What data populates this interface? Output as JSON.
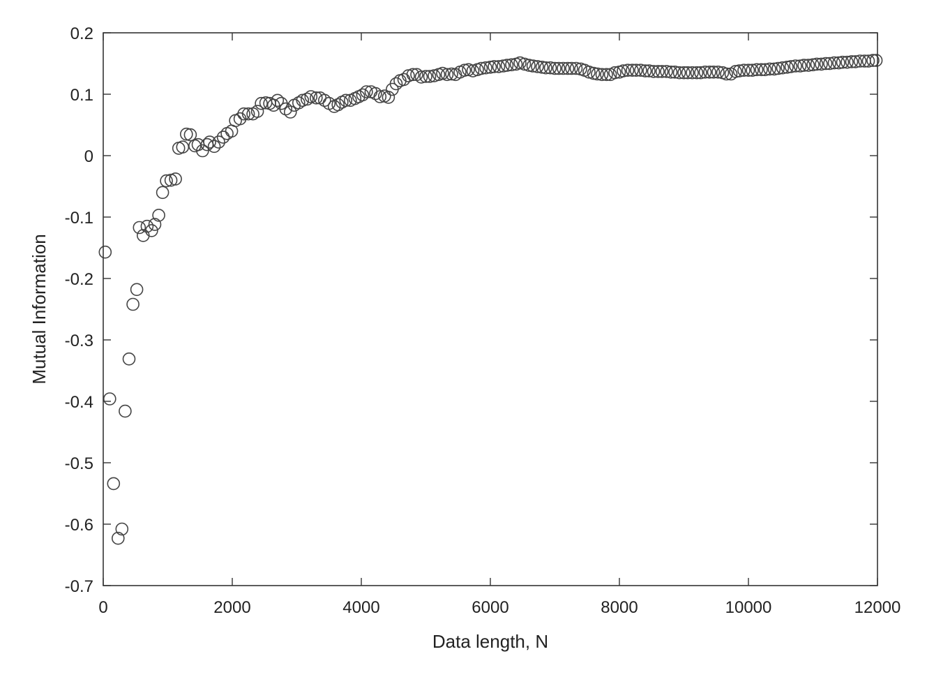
{
  "chart_data": {
    "type": "scatter",
    "title": "",
    "xlabel": "Data length, N",
    "ylabel": "Mutual Information",
    "xlim": [
      0,
      12000
    ],
    "ylim": [
      -0.7,
      0.2
    ],
    "xticks": [
      0,
      2000,
      4000,
      6000,
      8000,
      10000,
      12000
    ],
    "yticks": [
      0.2,
      0.1,
      0,
      -0.1,
      -0.2,
      -0.3,
      -0.4,
      -0.5,
      -0.6,
      -0.7
    ],
    "xtick_labels": [
      "0",
      "2000",
      "4000",
      "6000",
      "8000",
      "10000",
      "12000"
    ],
    "ytick_labels": [
      "0.2",
      "0.1",
      "0",
      "-0.1",
      "-0.2",
      "-0.3",
      "-0.4",
      "-0.5",
      "-0.6",
      "-0.7"
    ],
    "grid": false,
    "marker": "open-circle",
    "marker_color": "#444444",
    "series": [
      {
        "points": [
          [
            30,
            -0.157
          ],
          [
            100,
            -0.396
          ],
          [
            160,
            -0.534
          ],
          [
            230,
            -0.623
          ],
          [
            290,
            -0.608
          ],
          [
            340,
            -0.416
          ],
          [
            400,
            -0.331
          ],
          [
            460,
            -0.242
          ],
          [
            520,
            -0.218
          ],
          [
            560,
            -0.117
          ],
          [
            620,
            -0.13
          ],
          [
            680,
            -0.115
          ],
          [
            750,
            -0.122
          ],
          [
            800,
            -0.112
          ],
          [
            860,
            -0.097
          ],
          [
            920,
            -0.06
          ],
          [
            980,
            -0.041
          ],
          [
            1050,
            -0.04
          ],
          [
            1120,
            -0.038
          ],
          [
            1170,
            0.012
          ],
          [
            1230,
            0.014
          ],
          [
            1290,
            0.035
          ],
          [
            1350,
            0.034
          ],
          [
            1420,
            0.016
          ],
          [
            1470,
            0.018
          ],
          [
            1540,
            0.008
          ],
          [
            1610,
            0.018
          ],
          [
            1650,
            0.022
          ],
          [
            1720,
            0.015
          ],
          [
            1790,
            0.022
          ],
          [
            1860,
            0.03
          ],
          [
            1920,
            0.036
          ],
          [
            1990,
            0.04
          ],
          [
            2050,
            0.057
          ],
          [
            2120,
            0.06
          ],
          [
            2180,
            0.068
          ],
          [
            2250,
            0.068
          ],
          [
            2320,
            0.068
          ],
          [
            2390,
            0.072
          ],
          [
            2450,
            0.085
          ],
          [
            2520,
            0.086
          ],
          [
            2580,
            0.085
          ],
          [
            2640,
            0.082
          ],
          [
            2700,
            0.09
          ],
          [
            2760,
            0.085
          ],
          [
            2830,
            0.076
          ],
          [
            2900,
            0.071
          ],
          [
            2960,
            0.082
          ],
          [
            3030,
            0.086
          ],
          [
            3090,
            0.09
          ],
          [
            3160,
            0.092
          ],
          [
            3220,
            0.096
          ],
          [
            3300,
            0.094
          ],
          [
            3360,
            0.094
          ],
          [
            3430,
            0.09
          ],
          [
            3500,
            0.085
          ],
          [
            3580,
            0.08
          ],
          [
            3640,
            0.083
          ],
          [
            3700,
            0.087
          ],
          [
            3760,
            0.09
          ],
          [
            3830,
            0.09
          ],
          [
            3900,
            0.093
          ],
          [
            3960,
            0.096
          ],
          [
            4020,
            0.099
          ],
          [
            4080,
            0.104
          ],
          [
            4150,
            0.104
          ],
          [
            4220,
            0.101
          ],
          [
            4290,
            0.096
          ],
          [
            4360,
            0.097
          ],
          [
            4420,
            0.095
          ],
          [
            4480,
            0.108
          ],
          [
            4540,
            0.117
          ],
          [
            4600,
            0.122
          ],
          [
            4660,
            0.124
          ],
          [
            4730,
            0.13
          ],
          [
            4800,
            0.132
          ],
          [
            4860,
            0.132
          ],
          [
            4930,
            0.128
          ],
          [
            5000,
            0.129
          ],
          [
            5060,
            0.129
          ],
          [
            5130,
            0.13
          ],
          [
            5200,
            0.132
          ],
          [
            5260,
            0.134
          ],
          [
            5330,
            0.132
          ],
          [
            5400,
            0.133
          ],
          [
            5460,
            0.132
          ],
          [
            5530,
            0.136
          ],
          [
            5600,
            0.139
          ],
          [
            5660,
            0.14
          ],
          [
            5730,
            0.138
          ],
          [
            5800,
            0.14
          ],
          [
            5860,
            0.142
          ],
          [
            5930,
            0.143
          ],
          [
            6000,
            0.144
          ],
          [
            6060,
            0.145
          ],
          [
            6130,
            0.145
          ],
          [
            6200,
            0.146
          ],
          [
            6260,
            0.147
          ],
          [
            6330,
            0.148
          ],
          [
            6400,
            0.149
          ],
          [
            6460,
            0.151
          ],
          [
            6530,
            0.149
          ],
          [
            6600,
            0.147
          ],
          [
            6660,
            0.146
          ],
          [
            6730,
            0.145
          ],
          [
            6800,
            0.144
          ],
          [
            6860,
            0.143
          ],
          [
            6930,
            0.143
          ],
          [
            7000,
            0.142
          ],
          [
            7060,
            0.142
          ],
          [
            7130,
            0.142
          ],
          [
            7200,
            0.142
          ],
          [
            7260,
            0.142
          ],
          [
            7330,
            0.142
          ],
          [
            7400,
            0.141
          ],
          [
            7460,
            0.139
          ],
          [
            7530,
            0.136
          ],
          [
            7600,
            0.134
          ],
          [
            7660,
            0.133
          ],
          [
            7730,
            0.132
          ],
          [
            7800,
            0.132
          ],
          [
            7860,
            0.132
          ],
          [
            7930,
            0.135
          ],
          [
            8000,
            0.136
          ],
          [
            8060,
            0.138
          ],
          [
            8130,
            0.139
          ],
          [
            8200,
            0.139
          ],
          [
            8260,
            0.139
          ],
          [
            8330,
            0.139
          ],
          [
            8400,
            0.138
          ],
          [
            8460,
            0.138
          ],
          [
            8530,
            0.137
          ],
          [
            8600,
            0.137
          ],
          [
            8660,
            0.137
          ],
          [
            8730,
            0.137
          ],
          [
            8800,
            0.136
          ],
          [
            8860,
            0.136
          ],
          [
            8930,
            0.135
          ],
          [
            9000,
            0.135
          ],
          [
            9060,
            0.135
          ],
          [
            9130,
            0.135
          ],
          [
            9200,
            0.135
          ],
          [
            9260,
            0.135
          ],
          [
            9330,
            0.136
          ],
          [
            9400,
            0.136
          ],
          [
            9460,
            0.136
          ],
          [
            9530,
            0.136
          ],
          [
            9600,
            0.135
          ],
          [
            9660,
            0.133
          ],
          [
            9730,
            0.133
          ],
          [
            9800,
            0.137
          ],
          [
            9860,
            0.138
          ],
          [
            9930,
            0.139
          ],
          [
            10000,
            0.139
          ],
          [
            10060,
            0.139
          ],
          [
            10130,
            0.14
          ],
          [
            10200,
            0.14
          ],
          [
            10260,
            0.14
          ],
          [
            10330,
            0.141
          ],
          [
            10400,
            0.141
          ],
          [
            10460,
            0.142
          ],
          [
            10530,
            0.143
          ],
          [
            10600,
            0.144
          ],
          [
            10660,
            0.145
          ],
          [
            10730,
            0.146
          ],
          [
            10800,
            0.146
          ],
          [
            10860,
            0.147
          ],
          [
            10930,
            0.147
          ],
          [
            11000,
            0.148
          ],
          [
            11060,
            0.149
          ],
          [
            11130,
            0.149
          ],
          [
            11200,
            0.15
          ],
          [
            11260,
            0.15
          ],
          [
            11330,
            0.151
          ],
          [
            11400,
            0.151
          ],
          [
            11460,
            0.152
          ],
          [
            11530,
            0.152
          ],
          [
            11600,
            0.153
          ],
          [
            11660,
            0.153
          ],
          [
            11730,
            0.154
          ],
          [
            11800,
            0.154
          ],
          [
            11860,
            0.154
          ],
          [
            11930,
            0.155
          ],
          [
            11980,
            0.155
          ]
        ]
      }
    ]
  }
}
